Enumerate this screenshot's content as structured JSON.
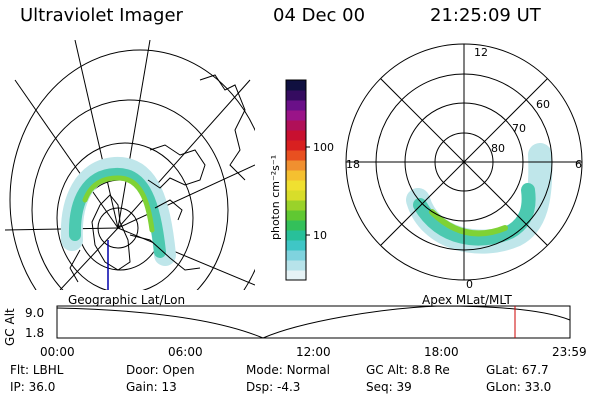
{
  "header": {
    "title": "Ultraviolet Imager",
    "date": "04 Dec 00",
    "time": "21:25:09 UT"
  },
  "colorbar": {
    "unit_label": "photon cm⁻²s⁻¹",
    "tick_100": "100",
    "tick_10": "10",
    "colors": [
      "#e6f3f6",
      "#b7e3ea",
      "#7fd3de",
      "#3fc6c6",
      "#28c09a",
      "#33c05a",
      "#60c832",
      "#9ad22a",
      "#d8dd2a",
      "#f0e030",
      "#f5c030",
      "#f09030",
      "#e85020",
      "#d82020",
      "#c81030",
      "#b01058",
      "#9a1488",
      "#6a1088",
      "#350c60",
      "#101040"
    ]
  },
  "left_panel": {
    "caption": "Geographic Lat/Lon"
  },
  "right_panel": {
    "caption": "Apex MLat/MLT",
    "mlt_labels": {
      "top": "12",
      "left": "18",
      "right": "6",
      "bottom": "0"
    },
    "lat_labels": [
      "60",
      "70",
      "80"
    ]
  },
  "timeline": {
    "axis_label": "GC Alt",
    "y_ticks": [
      "9.0",
      "1.8"
    ],
    "x_ticks": [
      "00:00",
      "06:00",
      "12:00",
      "18:00",
      "23:59"
    ],
    "current_marker_color": "#cc0000"
  },
  "info": {
    "filter_label": "Flt:",
    "filter_value": "LBHL",
    "ip_label": "IP:",
    "ip_value": "36.0",
    "door_label": "Door:",
    "door_value": "Open",
    "gain_label": "Gain:",
    "gain_value": "13",
    "mode_label": "Mode:",
    "mode_value": "Normal",
    "dsp_label": "Dsp:",
    "dsp_value": "-4.3",
    "gcalt_label": "GC Alt:",
    "gcalt_value": "8.8 Re",
    "seq_label": "Seq:",
    "seq_value": "39",
    "glat_label": "GLat:",
    "glat_value": "67.7",
    "glon_label": "GLon:",
    "glon_value": "33.0"
  }
}
